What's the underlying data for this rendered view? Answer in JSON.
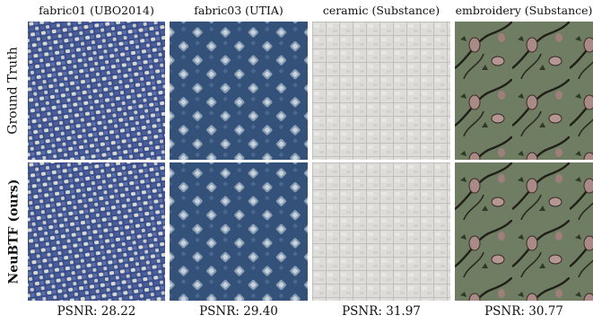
{
  "columns": [
    {
      "title": "fabric01 (UBO2014)",
      "psnr": "PSNR: 28.22"
    },
    {
      "title": "fabric03 (UTIA)",
      "psnr": "PSNR: 29.40"
    },
    {
      "title": "ceramic (Substance)",
      "psnr": "PSNR: 31.97"
    },
    {
      "title": "embroidery (Substance)",
      "psnr": "PSNR: 30.77"
    }
  ],
  "rows": [
    {
      "label": "Ground Truth"
    },
    {
      "label": "NeuBTF (ours)"
    }
  ]
}
